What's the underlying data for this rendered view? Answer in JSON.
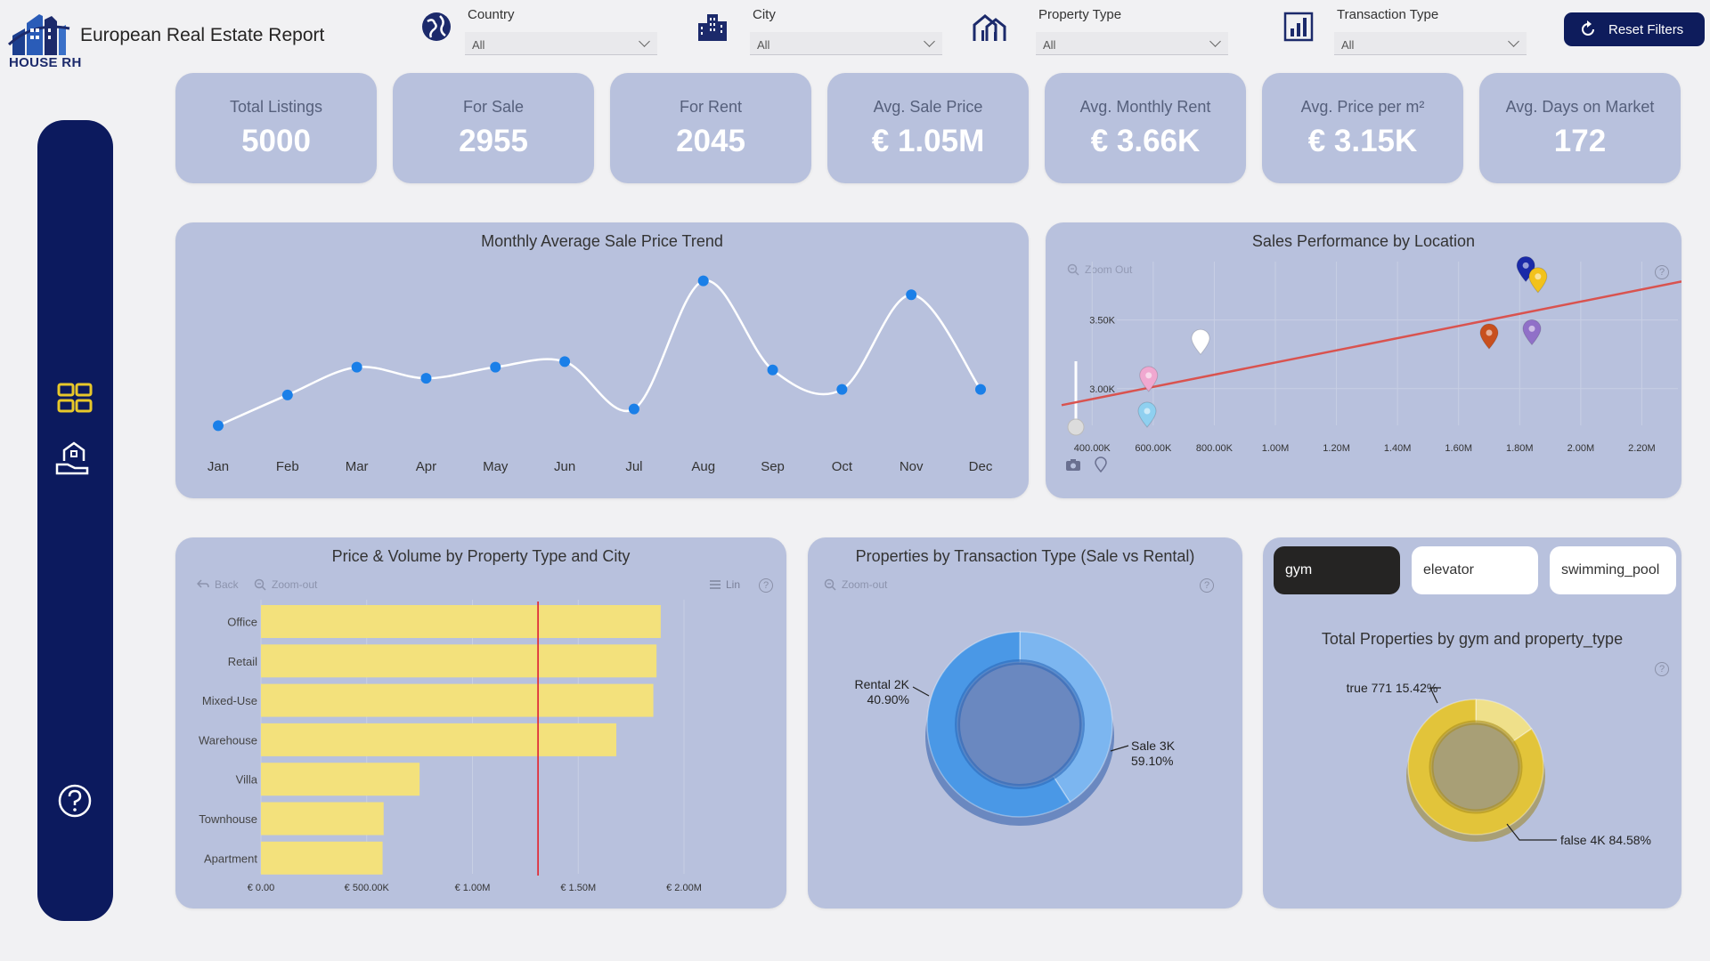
{
  "header": {
    "title": "European Real Estate Report",
    "logo_text": "HOUSE RH",
    "reset_label": "Reset Filters"
  },
  "filters": [
    {
      "label": "Country",
      "value": "All",
      "icon": "globe-icon"
    },
    {
      "label": "City",
      "value": "All",
      "icon": "city-buildings-icon"
    },
    {
      "label": "Property Type",
      "value": "All",
      "icon": "houses-icon"
    },
    {
      "label": "Transaction Type",
      "value": "All",
      "icon": "bar-chart-icon"
    }
  ],
  "sidebar": {
    "items": [
      {
        "icon": "dashboard-grid-icon"
      },
      {
        "icon": "house-hand-icon"
      },
      {
        "icon": "help-circle-icon"
      }
    ]
  },
  "kpis": [
    {
      "label": "Total Listings",
      "value": "5000"
    },
    {
      "label": "For Sale",
      "value": "2955"
    },
    {
      "label": "For Rent",
      "value": "2045"
    },
    {
      "label": "Avg. Sale Price",
      "value": "€ 1.05M"
    },
    {
      "label": "Avg. Monthly Rent",
      "value": "€ 3.66K"
    },
    {
      "label": "Avg. Price per m²",
      "value": "€ 3.15K"
    },
    {
      "label": "Avg. Days on Market",
      "value": "172"
    }
  ],
  "toolbar": {
    "zoom_out": "Zoom Out",
    "zoom_out_lower": "Zoom-out",
    "back": "Back",
    "lin": "Lin",
    "help": "?"
  },
  "chips": [
    "gym",
    "elevator",
    "swimming_pool"
  ],
  "colors": {
    "navy": "#0c1a5e",
    "panel": "#b8c1dd",
    "line_point": "#1a7fe8",
    "bar": "#f3e17c",
    "donut_blue": "#4a98e6",
    "donut_gold": "#e2c43a",
    "trend": "#d9534f"
  },
  "chart_data": [
    {
      "type": "line",
      "title": "Monthly Average Sale Price Trend",
      "categories": [
        "Jan",
        "Feb",
        "Mar",
        "Apr",
        "May",
        "Jun",
        "Jul",
        "Aug",
        "Sep",
        "Oct",
        "Nov",
        "Dec"
      ],
      "values": [
        0.83,
        0.94,
        1.04,
        1.0,
        1.04,
        1.06,
        0.89,
        1.35,
        1.03,
        0.96,
        1.3,
        0.96
      ],
      "ylim": [
        0.78,
        1.4
      ],
      "grid": false
    },
    {
      "type": "scatter",
      "title": "Sales Performance by Location",
      "x_ticks": [
        "400.00K",
        "600.00K",
        "800.00K",
        "1.00M",
        "1.20M",
        "1.40M",
        "1.60M",
        "1.80M",
        "2.00M",
        "2.20M"
      ],
      "y_ticks": [
        "3.00K",
        "3.50K"
      ],
      "xlim": [
        300000,
        2330000
      ],
      "ylim": [
        2720,
        3990
      ],
      "points": [
        {
          "x": 585000,
          "y": 2980,
          "color": "#f0a8d0"
        },
        {
          "x": 580000,
          "y": 2720,
          "color": "#8fd0f0"
        },
        {
          "x": 755000,
          "y": 3250,
          "color": "#ffffff"
        },
        {
          "x": 1700000,
          "y": 3290,
          "color": "#c8501e"
        },
        {
          "x": 1840000,
          "y": 3320,
          "color": "#9070c8"
        },
        {
          "x": 1820000,
          "y": 3780,
          "color": "#1a2aa8"
        },
        {
          "x": 1860000,
          "y": 3700,
          "color": "#f2c21c"
        }
      ],
      "trendline": [
        [
          300000,
          2880
        ],
        [
          2330000,
          3780
        ]
      ],
      "grid": true
    },
    {
      "type": "bar",
      "orientation": "horizontal",
      "title": "Price & Volume by Property Type and City",
      "categories": [
        "Office",
        "Retail",
        "Mixed-Use",
        "Warehouse",
        "Villa",
        "Townhouse",
        "Apartment"
      ],
      "values": [
        1890000,
        1870000,
        1855000,
        1680000,
        750000,
        580000,
        575000
      ],
      "x_ticks": [
        "€ 0.00",
        "€ 500.00K",
        "€ 1.00M",
        "€ 1.50M",
        "€ 2.00M"
      ],
      "xlim": [
        0,
        2000000
      ],
      "reference_line": 1310000,
      "grid": true
    },
    {
      "type": "pie",
      "title": "Properties by Transaction Type (Sale vs Rental)",
      "donut": true,
      "slices": [
        {
          "label": "Rental",
          "display": "2K",
          "percent": 40.9
        },
        {
          "label": "Sale",
          "display": "3K",
          "percent": 59.1
        }
      ],
      "label_text": [
        "Rental 2K",
        "40.90%",
        "Sale 3K",
        "59.10%"
      ]
    },
    {
      "type": "pie",
      "title": "Total Properties by gym and property_type",
      "donut": true,
      "slices": [
        {
          "label": "true",
          "display": "771",
          "percent": 15.42
        },
        {
          "label": "false",
          "display": "4K",
          "percent": 84.58
        }
      ],
      "label_text": [
        "true 771 15.42%",
        "false 4K 84.58%"
      ]
    }
  ]
}
